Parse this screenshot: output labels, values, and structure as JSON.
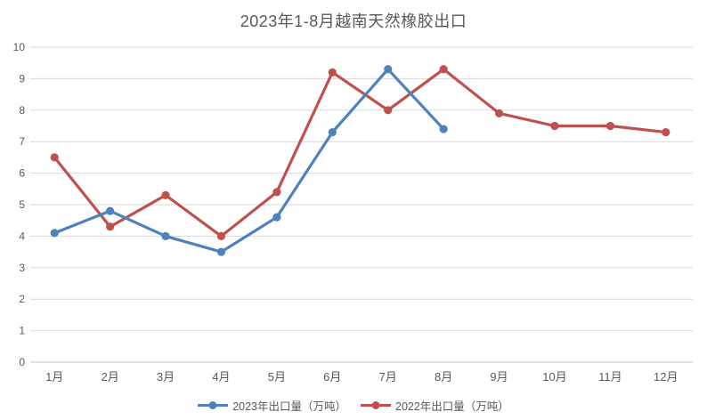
{
  "title": "2023年1-8月越南天然橡胶出口",
  "chart_data": {
    "type": "line",
    "title": "2023年1-8月越南天然橡胶出口",
    "categories": [
      "1月",
      "2月",
      "3月",
      "4月",
      "5月",
      "6月",
      "7月",
      "8月",
      "9月",
      "10月",
      "11月",
      "12月"
    ],
    "series": [
      {
        "name": "2023年出口量（万吨）",
        "color": "#4F81BD",
        "values": [
          4.1,
          4.8,
          4.0,
          3.5,
          4.6,
          7.3,
          9.3,
          7.4
        ]
      },
      {
        "name": "2022年出口量（万吨）",
        "color": "#C0504D",
        "values": [
          6.5,
          4.3,
          5.3,
          4.0,
          5.4,
          9.2,
          8.0,
          9.3,
          7.9,
          7.5,
          7.5,
          7.3
        ]
      }
    ],
    "xlabel": "",
    "ylabel": "",
    "ylim": [
      0,
      10
    ],
    "ytick_step": 1,
    "yticks": [
      0,
      1,
      2,
      3,
      4,
      5,
      6,
      7,
      8,
      9,
      10
    ],
    "grid": "horizontal",
    "legend_position": "bottom",
    "draw_order_note": "2023 (blue) series drawn on top of 2022 (red)",
    "colors": {
      "background": "#FFFFFF",
      "gridline": "#D9D9D9",
      "axis_line": "#C6C6C6",
      "tick_label": "#595959",
      "title": "#595959"
    }
  }
}
